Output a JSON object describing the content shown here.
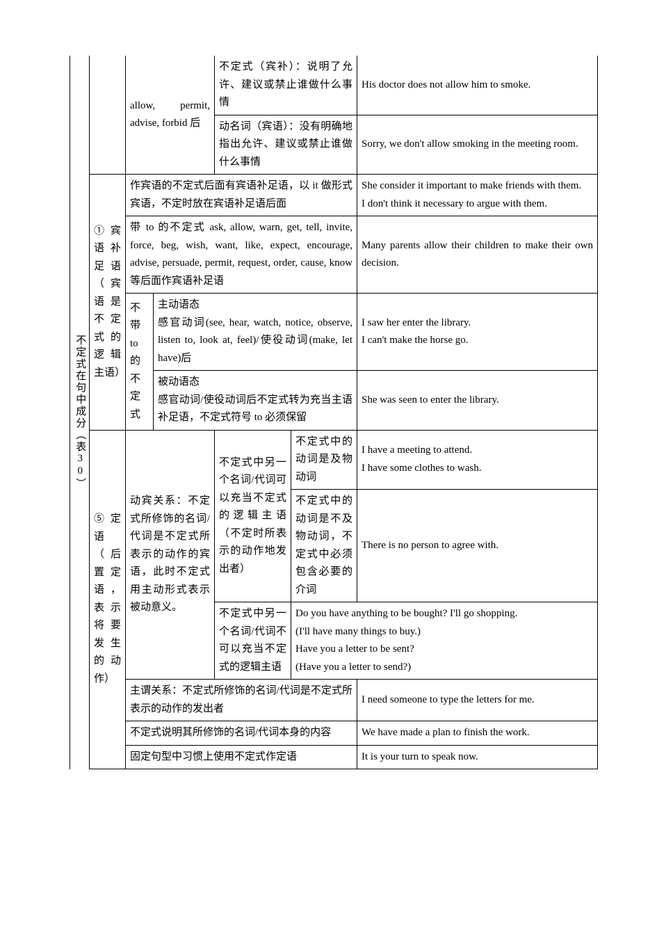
{
  "border_color": "#000000",
  "background_color": "#ffffff",
  "font": {
    "family": "SimSun",
    "size": 15,
    "line_height": 1.7,
    "color": "#000000"
  },
  "col0_label": "不定式在句中成分（表30）",
  "sec1": {
    "col1_label": "① 宾语补足语（宾语是不定式的逻辑主语）",
    "r1_c": "allow, permit, advise, forbid 后",
    "r1a_e": "不定式（宾补）：说明了允许、建议或禁止谁做什么事情",
    "r1a_g": "His doctor does not allow him to smoke.",
    "r1b_e": "动名词（宾语）：没有明确地指出允许、建议或禁止谁做什么事情",
    "r1b_g": "Sorry, we don't allow smoking in the meeting room.",
    "r2_e": "作宾语的不定式后面有宾语补足语，以 it 做形式宾语，不定时放在宾语补足语后面",
    "r2_g": "She consider it important to make friends with them.\nI don't think it necessary to argue with them.",
    "r3_e": "带 to 的不定式 ask, allow, warn, get, tell, invite, force, beg, wish, want, like, expect, encourage, advise, persuade, permit, request, order, cause, know 等后面作宾语补足语",
    "r3_g": "Many parents allow their children to make their own decision.",
    "r4_c": "不带 to 的不定式",
    "r4a_e": "主动语态\n感官动词(see, hear, watch, notice, observe, listen to, look at, feel)/使役动词(make, let have)后",
    "r4a_g": "I saw her enter the library.\nI can't make the horse go.",
    "r4b_e": "被动语态\n感官动词/使役动词后不定式转为充当主语补足语，不定式符号 to 必须保留",
    "r4b_g": "She was seen to enter the library."
  },
  "sec2": {
    "col1_label": "⑤ 定语（后置定语，表示将要发生的动作）",
    "r1_c": "动宾关系：不定式所修饰的名词/代词是不定式所表示的动作的宾语，此时不定式用主动形式表示被动意义。",
    "r1a_d": "不定式中另一个名词/代词可以充当不定式的逻辑主语（不定时所表示的动作地发出者）",
    "r1a1_f": "不定式中的动词是及物动词",
    "r1a1_g": "I have a meeting to attend.\nI have some clothes to wash.",
    "r1a2_f": "不定式中的动词是不及物动词，不定式中必须包含必要的介词",
    "r1a2_g": "There is no person to agree with.",
    "r1b_d": "不定式中另一个名词/代词不可以充当不定式的逻辑主语",
    "r1b_g": "Do you have anything to be bought? I'll go shopping.\n(I'll have many things to buy.)\nHave you a letter to be sent?\n(Have you a letter to send?)",
    "r2_e": "主谓关系：不定式所修饰的名词/代词是不定式所表示的动作的发出者",
    "r2_g": "I need someone to type the letters for me.",
    "r3_e": "不定式说明其所修饰的名词/代词本身的内容",
    "r3_g": "We have made a plan to finish the work.",
    "r4_e": "固定句型中习惯上使用不定式作定语",
    "r4_g": "It is your turn to speak now."
  }
}
